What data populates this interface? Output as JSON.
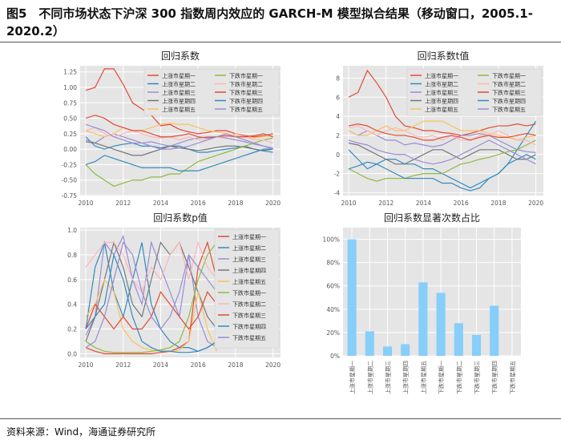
{
  "figure": {
    "title": "图5　不同市场状态下沪深 300 指数周内效应的 GARCH-M 模型拟合结果（移动窗口，2005.1-2020.2）",
    "source": "资料来源：Wind，海通证券研究所"
  },
  "series_names": [
    "上涨市星期一",
    "上涨市星期二",
    "上涨市星期三",
    "上涨市星期四",
    "上涨市星期五",
    "下跌市星期一",
    "下跌市星期二",
    "下跌市星期三",
    "下跌市星期四",
    "下跌市星期五"
  ],
  "colors": [
    "#E24A33",
    "#348ABD",
    "#988ED5",
    "#777777",
    "#FBC15E",
    "#8EBA42",
    "#FFB5B8",
    "#E24A33",
    "#348ABD",
    "#988ED5"
  ],
  "chart_data": [
    {
      "type": "line",
      "title": "回归系数",
      "xlim": [
        2009.7,
        2020.4
      ],
      "ylim": [
        -0.75,
        1.35
      ],
      "x_ticks": [
        2010,
        2012,
        2014,
        2016,
        2018,
        2020
      ],
      "y_ticks": [
        -0.75,
        -0.5,
        -0.25,
        0.0,
        0.25,
        0.5,
        0.75,
        1.0,
        1.25
      ],
      "y_tick_labels": [
        "-0.75",
        "-0.50",
        "-0.25",
        "0.00",
        "0.25",
        "0.50",
        "0.75",
        "1.00",
        "1.25"
      ],
      "x": [
        2010,
        2010.5,
        2011,
        2011.5,
        2012,
        2012.5,
        2013,
        2013.5,
        2014,
        2014.5,
        2015,
        2015.5,
        2016,
        2016.5,
        2017,
        2017.5,
        2018,
        2018.5,
        2019,
        2019.5,
        2020
      ],
      "series": [
        {
          "name": "上涨市星期一",
          "values": [
            0.95,
            1.0,
            1.3,
            1.3,
            1.05,
            0.75,
            0.65,
            0.55,
            0.38,
            0.4,
            0.32,
            0.28,
            0.25,
            0.27,
            0.3,
            0.3,
            0.25,
            0.22,
            0.2,
            0.22,
            0.25
          ]
        },
        {
          "name": "上涨市星期二",
          "values": [
            0.2,
            0.05,
            0.0,
            0.05,
            0.08,
            0.1,
            0.05,
            0.05,
            0.02,
            0.05,
            0.05,
            0.0,
            -0.05,
            -0.05,
            -0.02,
            0.0,
            0.02,
            0.05,
            0.0,
            -0.03,
            -0.05
          ]
        },
        {
          "name": "上涨市星期三",
          "values": [
            0.15,
            0.1,
            0.2,
            0.25,
            0.2,
            0.15,
            0.1,
            0.12,
            0.08,
            0.05,
            0.1,
            0.15,
            0.18,
            0.2,
            0.2,
            0.18,
            0.15,
            0.12,
            0.08,
            0.05,
            0.02
          ]
        },
        {
          "name": "上涨市星期四",
          "values": [
            0.12,
            0.1,
            0.05,
            0.0,
            -0.05,
            -0.1,
            -0.1,
            -0.05,
            0.0,
            0.05,
            0.02,
            0.0,
            -0.02,
            0.0,
            0.03,
            0.05,
            0.05,
            0.03,
            0.0,
            -0.02,
            0.0
          ]
        },
        {
          "name": "上涨市星期五",
          "values": [
            0.3,
            0.25,
            0.2,
            0.25,
            0.35,
            0.3,
            0.3,
            0.35,
            0.4,
            0.42,
            0.4,
            0.4,
            0.35,
            0.3,
            0.28,
            0.25,
            0.22,
            0.2,
            0.18,
            0.2,
            0.22
          ]
        },
        {
          "name": "下跌市星期一",
          "values": [
            -0.25,
            -0.4,
            -0.5,
            -0.6,
            -0.55,
            -0.5,
            -0.5,
            -0.45,
            -0.45,
            -0.4,
            -0.4,
            -0.3,
            -0.2,
            -0.15,
            -0.1,
            -0.05,
            0.0,
            0.05,
            0.1,
            0.15,
            0.18
          ]
        },
        {
          "name": "下跌市星期二",
          "values": [
            0.3,
            0.35,
            0.25,
            0.2,
            0.25,
            0.3,
            0.25,
            0.2,
            0.18,
            0.2,
            0.15,
            0.2,
            0.15,
            0.15,
            0.2,
            0.2,
            0.25,
            0.2,
            0.15,
            0.15,
            0.1
          ]
        },
        {
          "name": "下跌市星期三",
          "values": [
            0.5,
            0.55,
            0.5,
            0.4,
            0.35,
            0.3,
            0.3,
            0.25,
            0.2,
            0.2,
            0.22,
            0.25,
            0.2,
            0.18,
            0.2,
            0.22,
            0.2,
            0.2,
            0.22,
            0.25,
            0.2
          ]
        },
        {
          "name": "下跌市星期四",
          "values": [
            -0.25,
            -0.2,
            -0.1,
            -0.15,
            -0.2,
            -0.25,
            -0.3,
            -0.3,
            -0.3,
            -0.3,
            -0.35,
            -0.35,
            -0.35,
            -0.3,
            -0.25,
            -0.2,
            -0.15,
            -0.1,
            -0.05,
            0.0,
            0.0
          ]
        },
        {
          "name": "下跌市星期五",
          "values": [
            0.4,
            0.35,
            0.3,
            0.2,
            0.15,
            0.1,
            0.1,
            0.05,
            0.0,
            0.0,
            0.02,
            0.05,
            0.1,
            0.15,
            0.2,
            0.25,
            0.2,
            0.15,
            0.1,
            0.05,
            0.0
          ]
        }
      ]
    },
    {
      "type": "line",
      "title": "回归系数t值",
      "xlim": [
        2009.7,
        2020.4
      ],
      "ylim": [
        -4.3,
        9.3
      ],
      "x_ticks": [
        2010,
        2012,
        2014,
        2016,
        2018,
        2020
      ],
      "y_ticks": [
        -4,
        -2,
        0,
        2,
        4,
        6,
        8
      ],
      "y_tick_labels": [
        "-4",
        "-2",
        "0",
        "2",
        "4",
        "6",
        "8"
      ],
      "x": [
        2010,
        2010.5,
        2011,
        2011.5,
        2012,
        2012.5,
        2013,
        2013.5,
        2014,
        2014.5,
        2015,
        2015.5,
        2016,
        2016.5,
        2017,
        2017.5,
        2018,
        2018.5,
        2019,
        2019.5,
        2020
      ],
      "series": [
        {
          "name": "上涨市星期一",
          "values": [
            6.0,
            6.5,
            8.8,
            7.5,
            6.0,
            4.0,
            3.0,
            2.8,
            2.5,
            2.5,
            2.3,
            2.2,
            2.0,
            2.2,
            2.5,
            2.8,
            3.0,
            3.0,
            3.2,
            3.0,
            3.2
          ]
        },
        {
          "name": "上涨市星期二",
          "values": [
            0.5,
            -0.5,
            -1.5,
            -1.0,
            -0.5,
            -0.5,
            -1.0,
            -1.0,
            -1.5,
            -1.5,
            -2.0,
            -2.5,
            -3.0,
            -3.5,
            -3.0,
            -2.5,
            -2.0,
            -1.0,
            0.5,
            2.0,
            3.5
          ]
        },
        {
          "name": "上涨市星期三",
          "values": [
            2.5,
            2.0,
            2.5,
            2.0,
            1.5,
            1.5,
            1.0,
            1.2,
            1.0,
            0.8,
            1.0,
            1.5,
            2.0,
            2.0,
            2.2,
            2.0,
            1.5,
            1.0,
            0.5,
            0.3,
            0.2
          ]
        },
        {
          "name": "上涨市星期四",
          "values": [
            1.2,
            1.0,
            0.5,
            0.0,
            -0.5,
            -1.0,
            -1.0,
            -0.5,
            0.0,
            0.5,
            0.5,
            0.0,
            -0.5,
            0.0,
            0.5,
            0.5,
            0.5,
            0.0,
            -0.5,
            -0.5,
            0.0
          ]
        },
        {
          "name": "上涨市星期五",
          "values": [
            2.5,
            2.0,
            2.0,
            2.5,
            3.0,
            2.5,
            2.5,
            3.0,
            3.5,
            3.5,
            3.5,
            3.0,
            2.5,
            2.5,
            2.5,
            2.2,
            2.0,
            1.8,
            1.5,
            1.8,
            2.0
          ]
        },
        {
          "name": "下跌市星期一",
          "values": [
            -1.5,
            -2.0,
            -2.5,
            -2.8,
            -2.5,
            -2.5,
            -2.5,
            -2.2,
            -2.0,
            -2.0,
            -2.0,
            -1.5,
            -1.0,
            -0.8,
            -0.5,
            -0.3,
            0.0,
            0.3,
            0.5,
            1.0,
            1.5
          ]
        },
        {
          "name": "下跌市星期二",
          "values": [
            2.8,
            3.0,
            2.5,
            2.0,
            2.5,
            2.8,
            2.5,
            2.0,
            1.8,
            2.0,
            1.5,
            2.0,
            1.5,
            1.5,
            2.0,
            2.0,
            2.5,
            2.0,
            1.5,
            1.5,
            1.0
          ]
        },
        {
          "name": "下跌市星期三",
          "values": [
            3.0,
            3.2,
            3.0,
            2.5,
            2.2,
            2.0,
            2.0,
            1.8,
            1.5,
            1.5,
            1.8,
            2.0,
            1.8,
            1.5,
            1.8,
            2.0,
            1.8,
            1.8,
            2.0,
            2.2,
            2.0
          ]
        },
        {
          "name": "下跌市星期四",
          "values": [
            -1.5,
            -1.2,
            -0.8,
            -1.0,
            -1.5,
            -2.0,
            -2.5,
            -2.5,
            -2.5,
            -2.5,
            -3.0,
            -3.0,
            -3.5,
            -3.8,
            -3.5,
            -2.5,
            -2.0,
            -1.0,
            -0.5,
            0.0,
            -0.5
          ]
        },
        {
          "name": "下跌市星期五",
          "values": [
            1.5,
            1.2,
            1.0,
            0.5,
            0.2,
            0.0,
            0.0,
            -0.5,
            -0.8,
            -1.0,
            -0.8,
            -0.5,
            0.0,
            0.5,
            1.0,
            1.5,
            1.0,
            0.5,
            0.0,
            -0.5,
            -1.0
          ]
        }
      ]
    },
    {
      "type": "line",
      "title": "回归系数p值",
      "xlim": [
        2009.7,
        2020.4
      ],
      "ylim": [
        -0.03,
        1.02
      ],
      "x_ticks": [
        2010,
        2012,
        2014,
        2016,
        2018,
        2020
      ],
      "y_ticks": [
        0.0,
        0.2,
        0.4,
        0.6,
        0.8,
        1.0
      ],
      "y_tick_labels": [
        "0.0",
        "0.2",
        "0.4",
        "0.6",
        "0.8",
        "1.0"
      ],
      "x": [
        2010,
        2010.5,
        2011,
        2011.5,
        2012,
        2012.5,
        2013,
        2013.5,
        2014,
        2014.5,
        2015,
        2015.5,
        2016,
        2016.5,
        2017
      ],
      "series": [
        {
          "name": "上涨市星期一",
          "values": [
            0.05,
            0.02,
            0.0,
            0.0,
            0.0,
            0.0,
            0.0,
            0.0,
            0.01,
            0.02,
            0.05,
            0.1,
            0.7,
            0.9,
            0.6
          ]
        },
        {
          "name": "上涨市星期二",
          "values": [
            0.2,
            0.7,
            0.9,
            0.5,
            0.3,
            0.6,
            0.9,
            0.4,
            0.2,
            0.1,
            0.05,
            0.05,
            0.02,
            0.05,
            0.1
          ]
        },
        {
          "name": "上涨市星期三",
          "values": [
            0.15,
            0.3,
            0.9,
            0.8,
            0.95,
            0.6,
            0.4,
            0.9,
            0.7,
            0.5,
            0.3,
            0.8,
            0.3,
            0.1,
            0.05
          ]
        },
        {
          "name": "上涨市星期四",
          "values": [
            0.1,
            0.3,
            0.6,
            0.9,
            0.7,
            0.4,
            0.3,
            0.6,
            0.9,
            0.8,
            0.9,
            0.7,
            0.5,
            0.3,
            0.2
          ]
        },
        {
          "name": "上涨市星期五",
          "values": [
            0.3,
            0.4,
            0.6,
            0.5,
            0.2,
            0.1,
            0.05,
            0.03,
            0.02,
            0.02,
            0.03,
            0.1,
            0.5,
            0.2,
            0.02
          ]
        },
        {
          "name": "下跌市星期一",
          "values": [
            0.1,
            0.05,
            0.02,
            0.01,
            0.01,
            0.01,
            0.01,
            0.02,
            0.03,
            0.05,
            0.1,
            0.3,
            0.6,
            0.8,
            0.9
          ]
        },
        {
          "name": "下跌市星期二",
          "values": [
            0.7,
            0.8,
            0.9,
            0.9,
            0.8,
            0.6,
            0.5,
            0.7,
            0.6,
            0.8,
            0.9,
            0.6,
            0.9,
            0.7,
            0.6
          ]
        },
        {
          "name": "下跌市星期三",
          "values": [
            0.2,
            0.4,
            0.3,
            0.2,
            0.3,
            0.2,
            0.2,
            0.3,
            0.5,
            0.4,
            0.3,
            0.2,
            0.3,
            0.5,
            0.4
          ]
        },
        {
          "name": "下跌市星期四",
          "values": [
            0.2,
            0.3,
            0.4,
            0.8,
            0.6,
            0.3,
            0.1,
            0.05,
            0.02,
            0.02,
            0.01,
            0.01,
            0.02,
            0.05,
            0.1
          ]
        },
        {
          "name": "下跌市星期五",
          "values": [
            0.05,
            0.1,
            0.3,
            0.6,
            0.9,
            0.8,
            0.5,
            0.3,
            0.2,
            0.3,
            0.5,
            0.8,
            0.7,
            0.6,
            0.5
          ]
        }
      ]
    },
    {
      "type": "bar",
      "title": "回归系数显著次数占比",
      "categories": [
        "上涨市星期一",
        "上涨市星期二",
        "上涨市星期三",
        "上涨市星期四",
        "上涨市星期五",
        "下跌市星期一",
        "下跌市星期二",
        "下跌市星期三",
        "下跌市星期四",
        "下跌市星期五"
      ],
      "values": [
        100,
        21,
        8,
        10,
        63,
        54,
        28,
        18,
        43,
        0
      ],
      "ylim": [
        0,
        110
      ],
      "y_ticks": [
        0,
        20,
        40,
        60,
        80,
        100
      ],
      "y_tick_labels": [
        "0%",
        "20%",
        "40%",
        "60%",
        "80%",
        "100%"
      ],
      "bar_color": "#87CEFA"
    }
  ]
}
